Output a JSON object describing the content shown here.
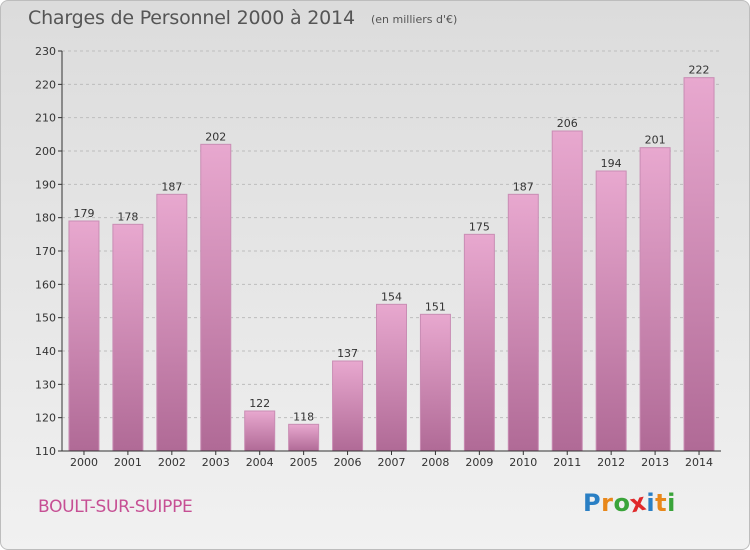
{
  "title": "Charges de Personnel 2000 à 2014",
  "subtitle": "(en milliers d'€)",
  "town": "BOULT-SUR-SUIPPE",
  "logo": {
    "letters": [
      "P",
      "r",
      "o",
      "x",
      "i",
      "t",
      "i"
    ],
    "colors": [
      "#2a7fc4",
      "#e8871a",
      "#3aa43a",
      "#e0292b",
      "#2a7fc4",
      "#e8871a",
      "#3aa43a"
    ]
  },
  "colors": {
    "bar_top": "#e8a8cf",
    "bar_bottom": "#b06a96",
    "grid": "#bdbdbd",
    "axis": "#333333",
    "text": "#333333"
  },
  "chart_data": {
    "type": "bar",
    "categories": [
      "2000",
      "2001",
      "2002",
      "2003",
      "2004",
      "2005",
      "2006",
      "2007",
      "2008",
      "2009",
      "2010",
      "2011",
      "2012",
      "2013",
      "2014"
    ],
    "values": [
      179,
      178,
      187,
      202,
      122,
      118,
      137,
      154,
      151,
      175,
      187,
      206,
      194,
      201,
      222
    ],
    "yticks": [
      110,
      120,
      130,
      140,
      150,
      160,
      170,
      180,
      190,
      200,
      210,
      220,
      230
    ],
    "ylim": [
      110,
      230
    ],
    "grid": true,
    "title": "Charges de Personnel 2000 à 2014",
    "xlabel": "",
    "ylabel": ""
  }
}
